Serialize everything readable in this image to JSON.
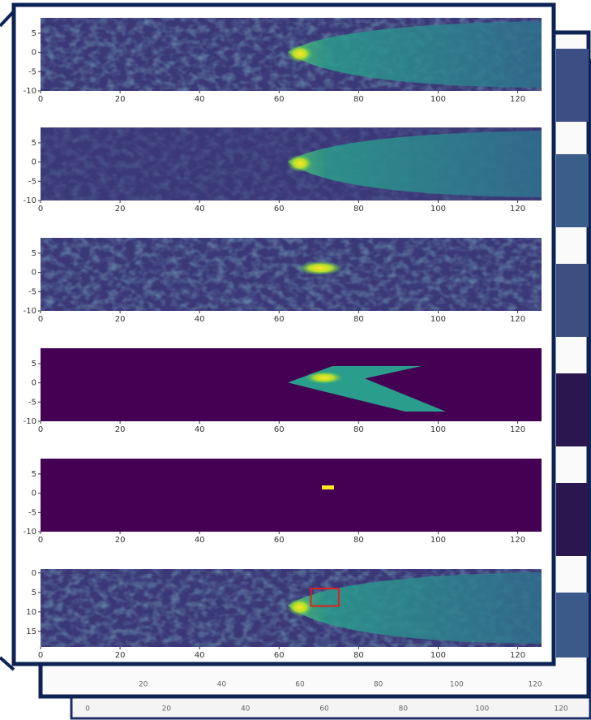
{
  "panels": [
    {
      "xlim": [
        0,
        126
      ],
      "ylim": [
        -10,
        9
      ],
      "xticks": [
        0,
        20,
        40,
        60,
        80,
        100,
        120
      ],
      "yticks": [
        5,
        0,
        -5,
        -10
      ]
    },
    {
      "xlim": [
        0,
        126
      ],
      "ylim": [
        -10,
        9
      ],
      "xticks": [
        0,
        20,
        40,
        60,
        80,
        100,
        120
      ],
      "yticks": [
        5,
        0,
        -5,
        -10
      ]
    },
    {
      "xlim": [
        0,
        126
      ],
      "ylim": [
        -10,
        9
      ],
      "xticks": [
        0,
        20,
        40,
        60,
        80,
        100,
        120
      ],
      "yticks": [
        5,
        0,
        -5,
        -10
      ]
    },
    {
      "xlim": [
        0,
        126
      ],
      "ylim": [
        -10,
        9
      ],
      "xticks": [
        0,
        20,
        40,
        60,
        80,
        100,
        120
      ],
      "yticks": [
        5,
        0,
        -5,
        -10
      ]
    },
    {
      "xlim": [
        0,
        126
      ],
      "ylim": [
        -10,
        9
      ],
      "xticks": [
        0,
        20,
        40,
        60,
        80,
        100,
        120
      ],
      "yticks": [
        5,
        0,
        -5,
        -10
      ]
    },
    {
      "xlim": [
        0,
        126
      ],
      "ylim": [
        19,
        -1
      ],
      "xticks": [
        0,
        20,
        40,
        60,
        80,
        100,
        120
      ],
      "yticks": [
        0,
        5,
        10,
        15
      ],
      "box": {
        "x": [
          68,
          75
        ],
        "y": [
          4,
          8.5
        ]
      }
    }
  ],
  "background_axes": [
    {
      "xticks": [
        20,
        40,
        60,
        80,
        100,
        120
      ]
    },
    {
      "xticks": [
        0,
        20,
        40,
        60,
        80,
        100,
        120
      ]
    }
  ]
}
